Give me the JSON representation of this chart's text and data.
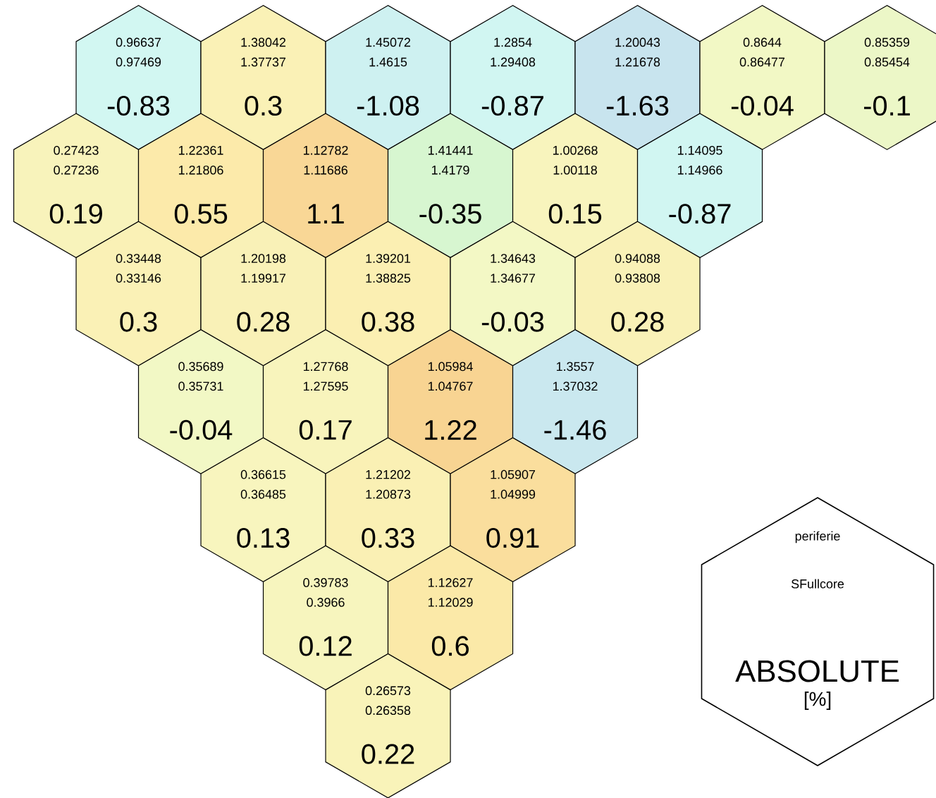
{
  "chart_data": {
    "type": "other",
    "data_labels": true,
    "title": "periferie",
    "subtitle": "SFullcore",
    "values": [
      -0.83,
      0.3,
      -1.08,
      -0.87,
      -1.63,
      -0.04,
      -0.1,
      0.19,
      0.55,
      1.1,
      -0.35,
      0.15,
      -0.87,
      0.3,
      0.28,
      0.38,
      -0.03,
      0.28,
      -0.04,
      0.17,
      1.22,
      -1.46,
      0.13,
      0.33,
      0.91,
      0.12,
      0.6,
      0.22
    ],
    "annotations": [
      "0.96637",
      "0.97469",
      "1.38042",
      "1.37737",
      "1.45072",
      "1.4615",
      "1.2854",
      "1.29408",
      "1.20043",
      "1.21678",
      "0.8644",
      "0.86477",
      "0.85359",
      "0.85454",
      "0.27423",
      "0.27236",
      "1.22361",
      "1.21806",
      "1.12782",
      "1.11686",
      "1.41441",
      "1.4179",
      "1.00268",
      "1.00118",
      "1.14095",
      "1.14966",
      "0.33448",
      "0.33146",
      "1.20198",
      "1.19917",
      "1.39201",
      "1.38825",
      "1.34643",
      "1.34677",
      "0.94088",
      "0.93808",
      "0.35689",
      "0.35731",
      "1.27768",
      "1.27595",
      "1.05984",
      "1.04767",
      "1.3557",
      "1.37032",
      "0.36615",
      "0.36485",
      "1.21202",
      "1.20873",
      "1.05907",
      "1.04999",
      "0.39783",
      "0.3966",
      "1.12627",
      "1.12029",
      "0.26573",
      "0.26358",
      "ABSOLUTE",
      "[%]"
    ]
  }
}
